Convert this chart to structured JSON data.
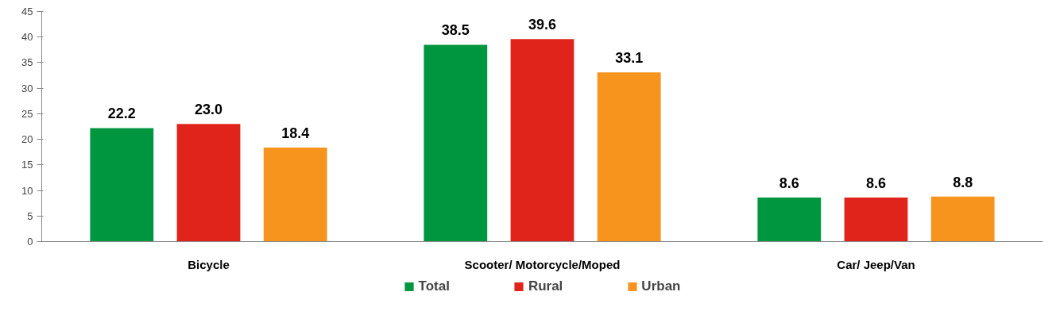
{
  "chart_data": {
    "type": "bar",
    "categories": [
      "Bicycle",
      "Scooter/ Motorcycle/Moped",
      "Car/ Jeep/Van"
    ],
    "series": [
      {
        "name": "Total",
        "color": "#00963f",
        "values": [
          22.2,
          38.5,
          8.6
        ],
        "value_labels": [
          "22.2",
          "38.5",
          "8.6"
        ]
      },
      {
        "name": "Rural",
        "color": "#e0241b",
        "values": [
          23.0,
          39.6,
          8.6
        ],
        "value_labels": [
          "23.0",
          "39.6",
          "8.6"
        ]
      },
      {
        "name": "Urban",
        "color": "#f7941d",
        "values": [
          18.4,
          33.1,
          8.8
        ],
        "value_labels": [
          "18.4",
          "33.1",
          "8.8"
        ]
      }
    ],
    "ylim": [
      0,
      45
    ],
    "yticks": [
      0,
      5,
      10,
      15,
      20,
      25,
      30,
      35,
      40,
      45
    ],
    "grid": false,
    "legend": "bottom",
    "data_labels": true
  }
}
